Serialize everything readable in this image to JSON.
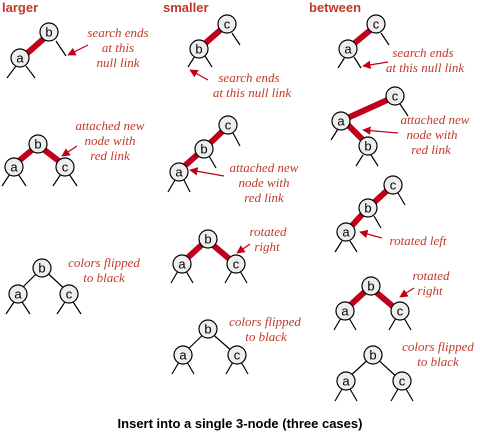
{
  "columns": {
    "larger": "larger",
    "smaller": "smaller",
    "between": "between"
  },
  "node_keys": {
    "a": "a",
    "b": "b",
    "c": "c"
  },
  "notes": {
    "search_ends": [
      "search ends",
      "at this",
      "null link"
    ],
    "search_ends_2": [
      "search ends",
      "at this null link"
    ],
    "attached": [
      "attached new",
      "node with",
      "red link"
    ],
    "colors_flipped": [
      "colors flipped",
      "to black"
    ],
    "rotated_right": [
      "rotated",
      "right"
    ],
    "rotated_left": "rotated left"
  },
  "caption": "Insert into a single 3-node (three cases)",
  "colors": {
    "red_link": "#c0001a",
    "annotation": "#c0392b",
    "node_fill": "#eeeeee"
  }
}
